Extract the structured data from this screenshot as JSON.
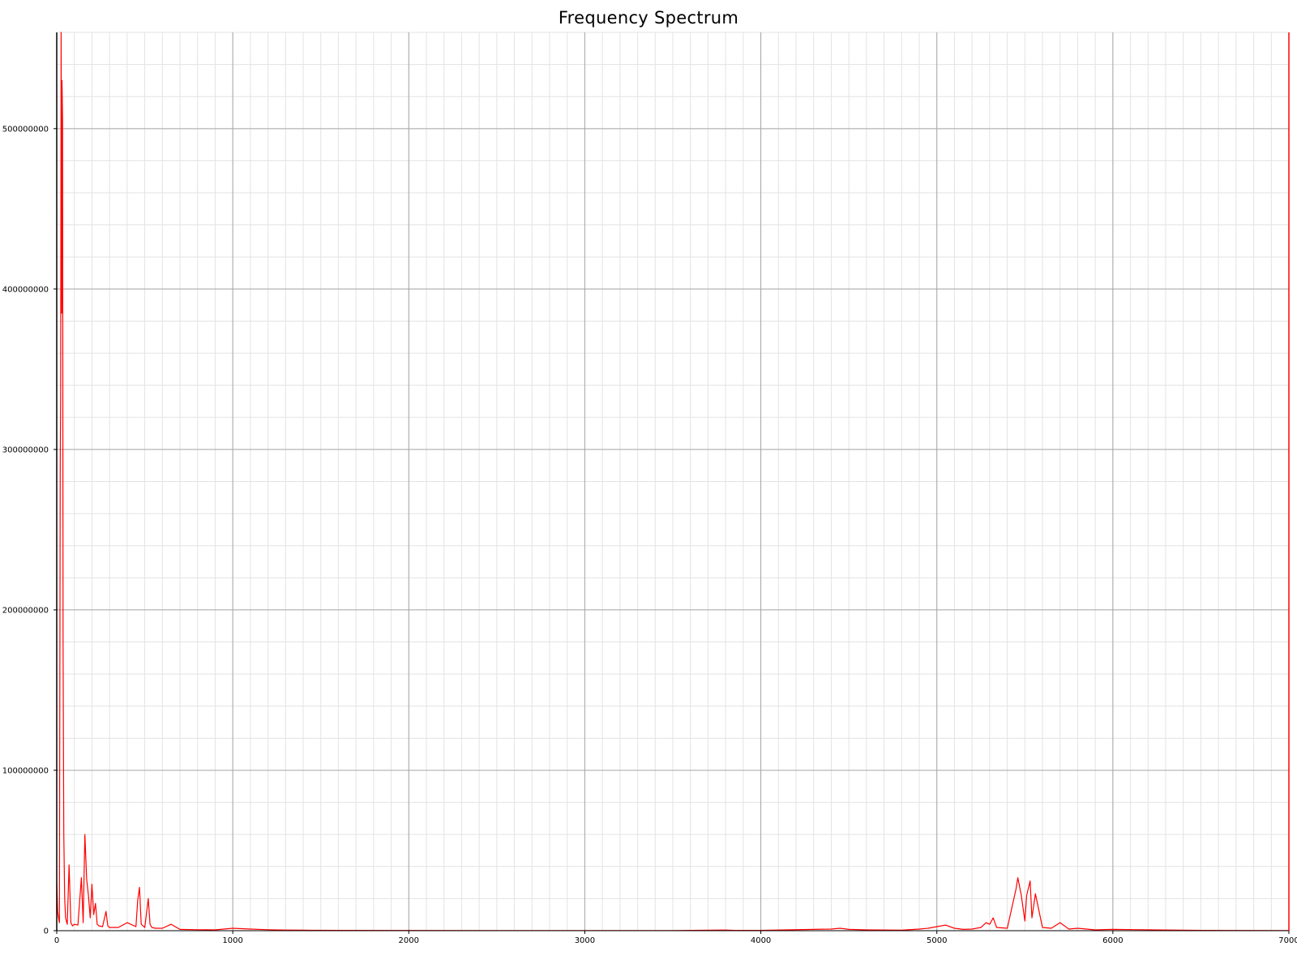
{
  "chart_data": {
    "type": "line",
    "title": "Frequency Spectrum",
    "xlabel": "",
    "ylabel": "",
    "xlim": [
      0,
      7000
    ],
    "ylim": [
      0,
      560000000
    ],
    "x_ticks": [
      0,
      1000,
      2000,
      3000,
      4000,
      5000,
      6000,
      7000
    ],
    "x_tick_labels": [
      "0",
      "1000",
      "2000",
      "3000",
      "4000",
      "5000",
      "6000",
      "7000"
    ],
    "y_ticks": [
      0,
      100000000,
      200000000,
      300000000,
      400000000,
      500000000
    ],
    "y_tick_labels": [
      "0",
      "100000000",
      "200000000",
      "300000000",
      "400000000",
      "500000000"
    ],
    "grid": true,
    "minor_grid": true,
    "legend": "none",
    "series_color": "#ff0000",
    "series": [
      {
        "x": [
          0,
          5,
          10,
          15,
          20,
          22,
          25,
          28,
          30,
          33,
          36,
          40,
          45,
          50,
          55,
          60,
          70,
          80,
          90,
          100,
          120,
          140,
          150,
          160,
          170,
          180,
          190,
          200,
          210,
          220,
          230,
          240,
          260,
          280,
          290,
          300,
          350,
          400,
          450,
          460,
          470,
          480,
          500,
          520,
          530,
          540,
          560,
          600,
          650,
          700,
          800,
          900,
          950,
          1000,
          1100,
          1200,
          1300,
          1400,
          1600,
          2000,
          2500,
          3000,
          3500,
          3800,
          3850,
          4000,
          4400,
          4450,
          4500,
          4600,
          4800,
          4900,
          4950,
          5000,
          5050,
          5100,
          5150,
          5200,
          5250,
          5280,
          5300,
          5320,
          5340,
          5400,
          5450,
          5460,
          5480,
          5500,
          5510,
          5530,
          5540,
          5560,
          5600,
          5650,
          5700,
          5750,
          5800,
          5900,
          6000,
          6500,
          7000
        ],
        "y": [
          30000000,
          12000000,
          8000000,
          5000000,
          290000000,
          330000000,
          560000000,
          385000000,
          530000000,
          505000000,
          180000000,
          60000000,
          20000000,
          8000000,
          6000000,
          4000000,
          41000000,
          5000000,
          3000000,
          4000000,
          3500000,
          33000000,
          5000000,
          60000000,
          32000000,
          22000000,
          8000000,
          29000000,
          10000000,
          17000000,
          4000000,
          3000000,
          2500000,
          12000000,
          3000000,
          2000000,
          2000000,
          5000000,
          2500000,
          19000000,
          27000000,
          4000000,
          2000000,
          20000000,
          4000000,
          2000000,
          1500000,
          1500000,
          4000000,
          800000,
          600000,
          500000,
          1000000,
          1500000,
          1000000,
          600000,
          400000,
          300000,
          200000,
          150000,
          100000,
          100000,
          100000,
          400000,
          200000,
          200000,
          1000000,
          1500000,
          800000,
          500000,
          300000,
          1000000,
          1500000,
          2500000,
          3500000,
          1500000,
          800000,
          1000000,
          2000000,
          5000000,
          4000000,
          8000000,
          2000000,
          1500000,
          26000000,
          33000000,
          22000000,
          6000000,
          22000000,
          31000000,
          8000000,
          23000000,
          2000000,
          1500000,
          5000000,
          1000000,
          1500000,
          500000,
          800000,
          200000,
          100000
        ]
      }
    ]
  }
}
